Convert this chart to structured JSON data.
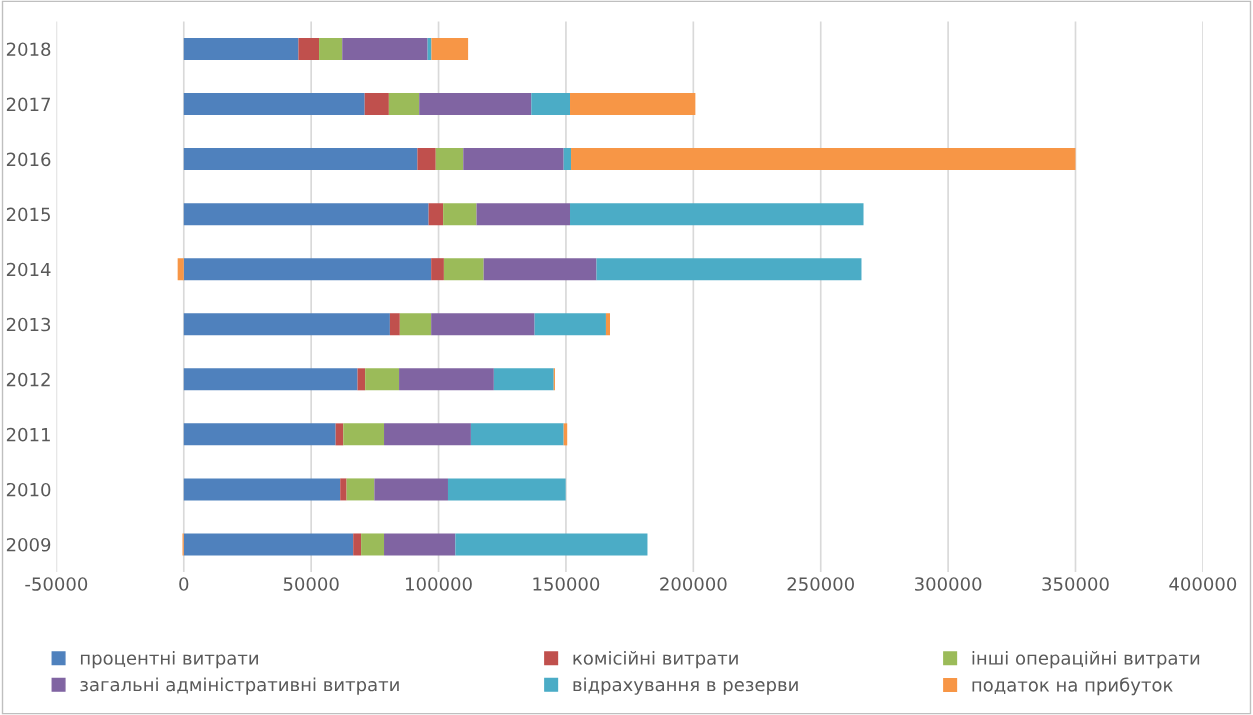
{
  "chart_data": {
    "type": "bar",
    "orientation": "horizontal",
    "stacked": true,
    "categories": [
      "2018",
      "2017",
      "2016",
      "2015",
      "2014",
      "2013",
      "2012",
      "2011",
      "2010",
      "2009"
    ],
    "series": [
      {
        "name": "процентні витрати",
        "color": "#4f81bd",
        "values": [
          45000,
          71000,
          91700,
          96100,
          97100,
          80900,
          68200,
          59600,
          61400,
          66500
        ]
      },
      {
        "name": "комісійні витрати",
        "color": "#c0504d",
        "values": [
          8100,
          9500,
          7200,
          5700,
          5000,
          3900,
          3000,
          3000,
          2500,
          3100
        ]
      },
      {
        "name": "інші операційні витрати",
        "color": "#9bbb59",
        "values": [
          9100,
          11900,
          10800,
          13100,
          15600,
          12300,
          13300,
          16000,
          10900,
          9000
        ]
      },
      {
        "name": "загальні адміністративні витрати",
        "color": "#8064a2",
        "values": [
          33500,
          44000,
          39400,
          36700,
          44300,
          40600,
          37200,
          34100,
          28900,
          28000
        ]
      },
      {
        "name": "відрахування в резерви",
        "color": "#4bacc6",
        "values": [
          1500,
          15200,
          2900,
          115200,
          104000,
          28000,
          23500,
          36400,
          46200,
          75400
        ]
      },
      {
        "name": "податок на прибуток",
        "color": "#f79646",
        "values": [
          14400,
          49200,
          198000,
          null,
          -2400,
          1600,
          500,
          1400,
          null,
          -500
        ]
      }
    ],
    "xlim": [
      -50000,
      400000
    ],
    "xticks": [
      -50000,
      0,
      50000,
      100000,
      150000,
      200000,
      250000,
      300000,
      350000,
      400000
    ],
    "grid": "x",
    "legend": "bottom"
  }
}
